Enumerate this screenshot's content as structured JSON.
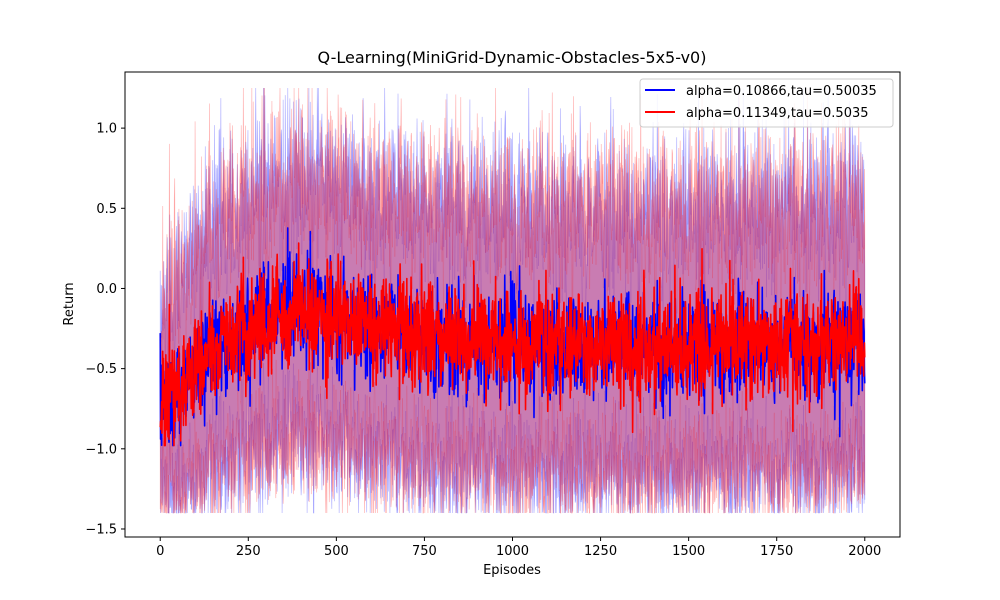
{
  "chart_data": {
    "type": "line",
    "title": "Q-Learning(MiniGrid-Dynamic-Obstacles-5x5-v0)",
    "xlabel": "Episodes",
    "ylabel": "Return",
    "xlim": [
      -100,
      2100
    ],
    "ylim": [
      -1.55,
      1.35
    ],
    "xticks": [
      0,
      250,
      500,
      750,
      1000,
      1250,
      1500,
      1750,
      2000
    ],
    "yticks": [
      -1.5,
      -1.0,
      -0.5,
      0.0,
      0.5,
      1.0
    ],
    "xtick_labels": [
      "0",
      "250",
      "500",
      "750",
      "1000",
      "1250",
      "1500",
      "1750",
      "2000"
    ],
    "ytick_labels": [
      "−1.5",
      "−1.0",
      "−0.5",
      "0.0",
      "0.5",
      "1.0"
    ],
    "grid": false,
    "legend_position": "top-right",
    "series": [
      {
        "name": "alpha=0.10866,tau=0.50035",
        "color": "#0000ff",
        "band_color": "#0000ff",
        "band_opacity": 0.3,
        "mean_keypoints": [
          [
            0,
            -0.75
          ],
          [
            50,
            -0.62
          ],
          [
            100,
            -0.5
          ],
          [
            150,
            -0.38
          ],
          [
            200,
            -0.3
          ],
          [
            300,
            -0.2
          ],
          [
            375,
            -0.12
          ],
          [
            450,
            -0.15
          ],
          [
            550,
            -0.2
          ],
          [
            700,
            -0.28
          ],
          [
            900,
            -0.33
          ],
          [
            1100,
            -0.36
          ],
          [
            1300,
            -0.36
          ],
          [
            1500,
            -0.35
          ],
          [
            1700,
            -0.34
          ],
          [
            1900,
            -0.34
          ],
          [
            2000,
            -0.35
          ]
        ],
        "std_keypoints": [
          [
            0,
            0.55
          ],
          [
            50,
            0.7
          ],
          [
            100,
            0.75
          ],
          [
            200,
            0.8
          ],
          [
            400,
            0.85
          ],
          [
            600,
            0.85
          ],
          [
            800,
            0.85
          ],
          [
            1000,
            0.85
          ],
          [
            1200,
            0.85
          ],
          [
            1400,
            0.85
          ],
          [
            1600,
            0.85
          ],
          [
            1800,
            0.85
          ],
          [
            2000,
            0.85
          ]
        ]
      },
      {
        "name": "alpha=0.11349,tau=0.5035",
        "color": "#ff0000",
        "band_color": "#ff0000",
        "band_opacity": 0.3,
        "mean_keypoints": [
          [
            0,
            -0.75
          ],
          [
            50,
            -0.63
          ],
          [
            100,
            -0.5
          ],
          [
            150,
            -0.37
          ],
          [
            200,
            -0.28
          ],
          [
            300,
            -0.2
          ],
          [
            375,
            -0.1
          ],
          [
            450,
            -0.14
          ],
          [
            550,
            -0.2
          ],
          [
            700,
            -0.27
          ],
          [
            900,
            -0.32
          ],
          [
            1100,
            -0.35
          ],
          [
            1300,
            -0.36
          ],
          [
            1500,
            -0.35
          ],
          [
            1700,
            -0.34
          ],
          [
            1900,
            -0.34
          ],
          [
            2000,
            -0.33
          ]
        ],
        "std_keypoints": [
          [
            0,
            0.55
          ],
          [
            50,
            0.7
          ],
          [
            100,
            0.75
          ],
          [
            200,
            0.82
          ],
          [
            400,
            0.86
          ],
          [
            600,
            0.85
          ],
          [
            800,
            0.85
          ],
          [
            1000,
            0.85
          ],
          [
            1200,
            0.85
          ],
          [
            1400,
            0.85
          ],
          [
            1600,
            0.85
          ],
          [
            1800,
            0.85
          ],
          [
            2000,
            0.85
          ]
        ]
      }
    ],
    "overlap_band_color": "#c27bb9"
  }
}
